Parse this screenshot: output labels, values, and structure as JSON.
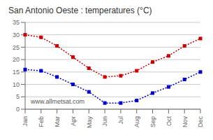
{
  "chart_data": {
    "type": "line",
    "title": "San Antonio Oeste : temperatures (°C)",
    "categories": [
      "Jan",
      "Feb",
      "Mar",
      "Apr",
      "May",
      "Jun",
      "Jul",
      "Aug",
      "Sep",
      "Oct",
      "Nov",
      "Dec"
    ],
    "series": [
      {
        "color": "#cc0000",
        "marker": "square",
        "line_style": "dotted",
        "values": [
          30,
          29,
          25.5,
          21,
          16.5,
          13,
          13.5,
          15.5,
          19,
          21.5,
          25.5,
          28.5
        ]
      },
      {
        "color": "#0000cc",
        "marker": "square",
        "line_style": "dotted",
        "values": [
          16,
          15.5,
          13,
          10,
          7,
          2.5,
          2.5,
          3.5,
          6.5,
          9,
          12,
          15
        ]
      }
    ],
    "ylim": [
      0,
      35
    ],
    "yticks": [
      0,
      5,
      10,
      15,
      20,
      25,
      30,
      35
    ],
    "grid": "y",
    "annotations": [
      "www.allmetsat.com"
    ]
  }
}
